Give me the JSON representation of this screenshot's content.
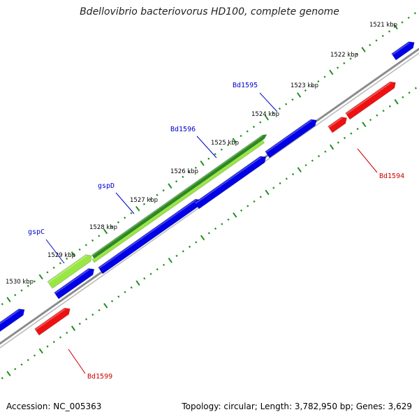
{
  "title": "Bdellovibrio bacteriovorus HD100, complete genome",
  "footer": {
    "accession": "Accession: NC_005363",
    "summary": "Topology: circular; Length: 3,782,950 bp; Genes: 3,629"
  },
  "colors": {
    "backbone": "#8c8c8c",
    "tick": "#1f8f1f",
    "forward_gene": "#2b8a1f",
    "forward_gene_light": "#99e645",
    "reverse_gene": "#0000e6",
    "feature_red": "#ee1111",
    "label_blue": "#0000cc",
    "label_red": "#cc0000"
  },
  "scale_labels": [
    "1521 kbp",
    "1522 kbp",
    "1523 kbp",
    "1524 kbp",
    "1525 kbp",
    "1526 kbp",
    "1527 kbp",
    "1528 kbp",
    "1529 kbp",
    "1530 kbp"
  ],
  "gene_labels": [
    {
      "text": "Bd1595",
      "color": "blue"
    },
    {
      "text": "Bd1596",
      "color": "blue"
    },
    {
      "text": "gspD",
      "color": "blue"
    },
    {
      "text": "gspC",
      "color": "blue"
    },
    {
      "text": "Bd1594",
      "color": "red"
    },
    {
      "text": "Bd1599",
      "color": "red"
    }
  ]
}
